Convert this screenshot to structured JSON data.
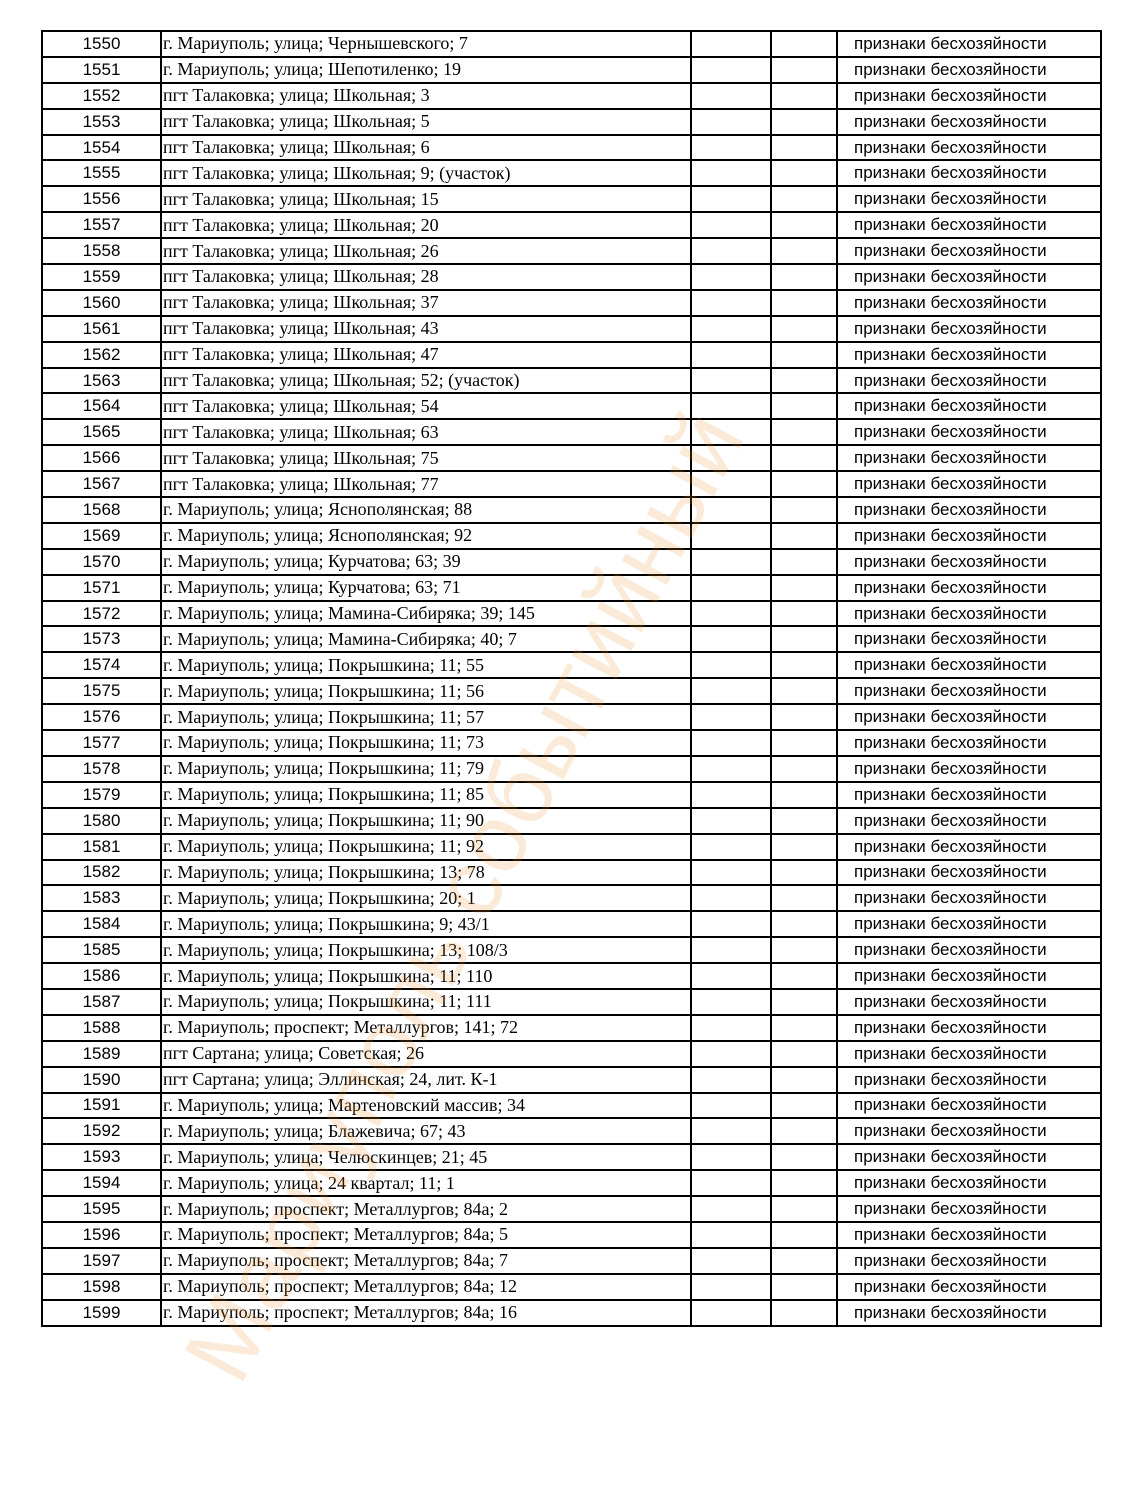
{
  "status_text": "признаки бесхозяйности",
  "watermark": {
    "text": "Мариуполь событийный",
    "color": "#f08c28"
  },
  "rows": [
    {
      "num": "1550",
      "address": "г. Мариуполь; улица; Чернышевского; 7"
    },
    {
      "num": "1551",
      "address": "г. Мариуполь; улица; Шепотиленко; 19"
    },
    {
      "num": "1552",
      "address": "пгт Талаковка; улица; Школьная; 3"
    },
    {
      "num": "1553",
      "address": "пгт Талаковка; улица; Школьная; 5"
    },
    {
      "num": "1554",
      "address": "пгт Талаковка; улица; Школьная; 6"
    },
    {
      "num": "1555",
      "address": "пгт Талаковка; улица; Школьная; 9; (участок)"
    },
    {
      "num": "1556",
      "address": "пгт Талаковка; улица; Школьная; 15"
    },
    {
      "num": "1557",
      "address": "пгт Талаковка; улица; Школьная; 20"
    },
    {
      "num": "1558",
      "address": "пгт Талаковка; улица; Школьная; 26"
    },
    {
      "num": "1559",
      "address": "пгт Талаковка; улица; Школьная; 28"
    },
    {
      "num": "1560",
      "address": "пгт Талаковка; улица; Школьная; 37"
    },
    {
      "num": "1561",
      "address": "пгт Талаковка; улица; Школьная; 43"
    },
    {
      "num": "1562",
      "address": "пгт Талаковка; улица; Школьная; 47"
    },
    {
      "num": "1563",
      "address": "пгт Талаковка; улица; Школьная; 52; (участок)"
    },
    {
      "num": "1564",
      "address": "пгт Талаковка; улица; Школьная; 54"
    },
    {
      "num": "1565",
      "address": "пгт Талаковка; улица; Школьная; 63"
    },
    {
      "num": "1566",
      "address": "пгт Талаковка; улица; Школьная; 75"
    },
    {
      "num": "1567",
      "address": "пгт Талаковка; улица; Школьная; 77"
    },
    {
      "num": "1568",
      "address": "г. Мариуполь; улица; Яснополянская; 88"
    },
    {
      "num": "1569",
      "address": "г. Мариуполь; улица; Яснополянская; 92"
    },
    {
      "num": "1570",
      "address": "г. Мариуполь; улица; Курчатова; 63; 39"
    },
    {
      "num": "1571",
      "address": "г. Мариуполь; улица; Курчатова; 63; 71"
    },
    {
      "num": "1572",
      "address": "г. Мариуполь; улица; Мамина-Сибиряка; 39; 145"
    },
    {
      "num": "1573",
      "address": "г. Мариуполь; улица; Мамина-Сибиряка; 40; 7"
    },
    {
      "num": "1574",
      "address": "г. Мариуполь; улица; Покрышкина; 11; 55"
    },
    {
      "num": "1575",
      "address": "г. Мариуполь; улица; Покрышкина; 11; 56"
    },
    {
      "num": "1576",
      "address": "г. Мариуполь; улица; Покрышкина; 11; 57"
    },
    {
      "num": "1577",
      "address": "г. Мариуполь; улица; Покрышкина; 11; 73"
    },
    {
      "num": "1578",
      "address": "г. Мариуполь; улица; Покрышкина; 11; 79"
    },
    {
      "num": "1579",
      "address": "г. Мариуполь; улица; Покрышкина; 11; 85"
    },
    {
      "num": "1580",
      "address": "г. Мариуполь; улица; Покрышкина; 11; 90"
    },
    {
      "num": "1581",
      "address": "г. Мариуполь; улица; Покрышкина; 11; 92"
    },
    {
      "num": "1582",
      "address": "г. Мариуполь; улица; Покрышкина; 13; 78"
    },
    {
      "num": "1583",
      "address": "г. Мариуполь; улица; Покрышкина; 20; 1"
    },
    {
      "num": "1584",
      "address": "г. Мариуполь; улица; Покрышкина; 9; 43/1"
    },
    {
      "num": "1585",
      "address": "г. Мариуполь; улица; Покрышкина; 13; 108/3"
    },
    {
      "num": "1586",
      "address": "г. Мариуполь; улица; Покрышкина; 11; 110"
    },
    {
      "num": "1587",
      "address": "г. Мариуполь; улица; Покрышкина; 11; 111"
    },
    {
      "num": "1588",
      "address": "г. Мариуполь; проспект; Металлургов; 141; 72"
    },
    {
      "num": "1589",
      "address": "пгт Сартана; улица; Советская; 26"
    },
    {
      "num": "1590",
      "address": "пгт Сартана; улица; Эллинская; 24, лит. К-1"
    },
    {
      "num": "1591",
      "address": "г. Мариуполь; улица; Мартеновский массив; 34"
    },
    {
      "num": "1592",
      "address": "г. Мариуполь; улица; Блажевича; 67; 43"
    },
    {
      "num": "1593",
      "address": "г. Мариуполь; улица; Челюскинцев; 21; 45"
    },
    {
      "num": "1594",
      "address": "г. Мариуполь; улица; 24 квартал; 11; 1"
    },
    {
      "num": "1595",
      "address": "г. Мариуполь; проспект; Металлургов; 84а; 2"
    },
    {
      "num": "1596",
      "address": "г. Мариуполь; проспект; Металлургов; 84а; 5"
    },
    {
      "num": "1597",
      "address": "г. Мариуполь; проспект; Металлургов; 84а; 7"
    },
    {
      "num": "1598",
      "address": "г. Мариуполь; проспект; Металлургов; 84а; 12"
    },
    {
      "num": "1599",
      "address": "г. Мариуполь; проспект; Металлургов; 84а; 16"
    }
  ]
}
